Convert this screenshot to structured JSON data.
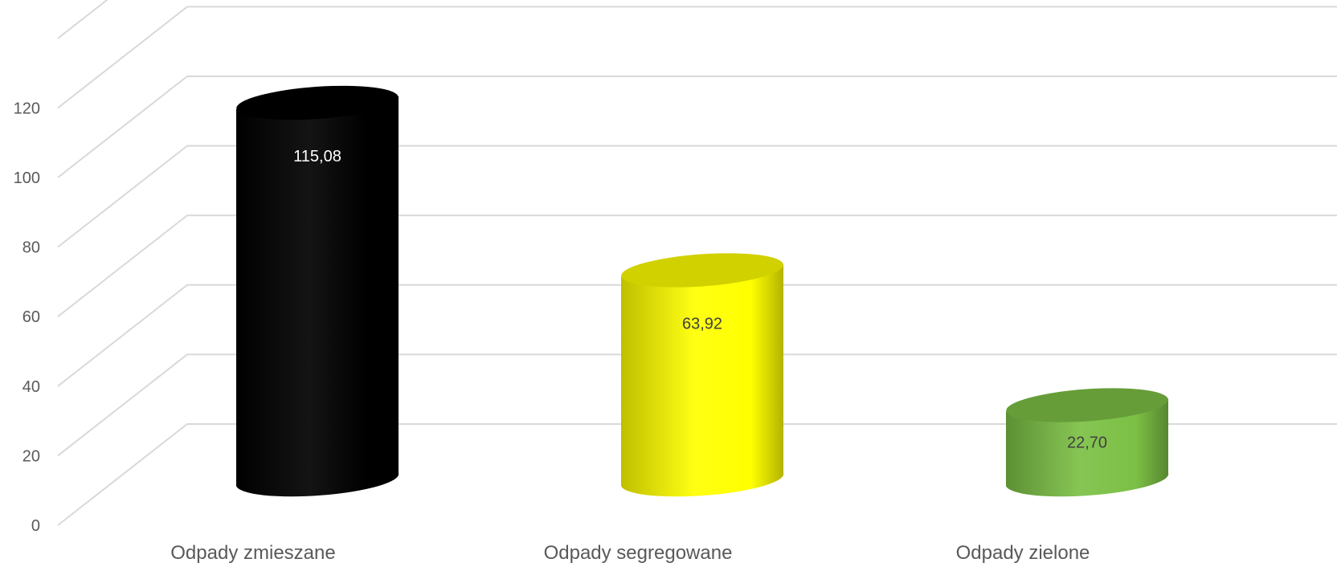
{
  "chart_data": {
    "type": "bar",
    "style": "3d-cylinder",
    "categories": [
      "Odpady zmieszane",
      "Odpady segregowane",
      "Odpady zielone"
    ],
    "values": [
      115.08,
      63.92,
      22.7
    ],
    "data_labels": [
      "115,08",
      "63,92",
      "22,70"
    ],
    "bar_colors": [
      "#000000",
      "#ffff00",
      "#7cc045"
    ],
    "label_colors": [
      "#ffffff",
      "#404040",
      "#404040"
    ],
    "y_ticks": [
      "0",
      "20",
      "40",
      "60",
      "80",
      "100",
      "120"
    ],
    "ylim": [
      0,
      140
    ],
    "grid": true,
    "legend": "none",
    "title": "",
    "xlabel": "",
    "ylabel": ""
  }
}
